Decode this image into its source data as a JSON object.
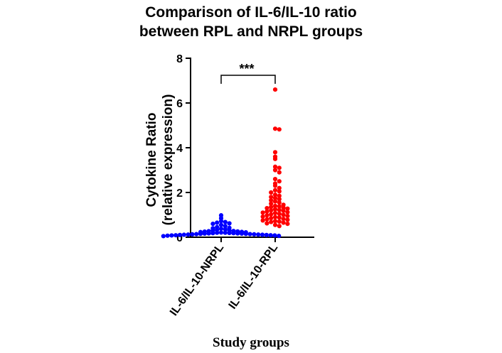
{
  "chart_data": {
    "type": "scatter",
    "title_lines": [
      "Comparison of IL-6/IL-10 ratio",
      "between RPL and NRPL groups"
    ],
    "ylabel_lines": [
      "Cytokine Ratio",
      "(relative expression)"
    ],
    "xlabel": "Study groups",
    "ylim": [
      0,
      8
    ],
    "yticks": [
      "0",
      "2",
      "4",
      "6",
      "8"
    ],
    "categories": [
      "IL-6/IL-10-NRPL",
      "IL-6/IL-10-RPL"
    ],
    "significance": "***",
    "grid": false,
    "series": [
      {
        "color": "#0000ff",
        "values": [
          0.98,
          0.85,
          0.72,
          0.68,
          0.65,
          0.62,
          0.6,
          0.55,
          0.5,
          0.45,
          0.42,
          0.4,
          0.38,
          0.35,
          0.33,
          0.3,
          0.3,
          0.28,
          0.27,
          0.26,
          0.25,
          0.24,
          0.23,
          0.22,
          0.21,
          0.2,
          0.2,
          0.19,
          0.18,
          0.18,
          0.17,
          0.17,
          0.16,
          0.16,
          0.15,
          0.15,
          0.14,
          0.14,
          0.13,
          0.13,
          0.12,
          0.12,
          0.11,
          0.11,
          0.1,
          0.1,
          0.09,
          0.09,
          0.08,
          0.08,
          0.07,
          0.06,
          0.05
        ]
      },
      {
        "color": "#ff0000",
        "values": [
          6.6,
          4.85,
          4.82,
          3.8,
          3.6,
          3.5,
          3.15,
          3.1,
          3.0,
          2.9,
          2.6,
          2.5,
          2.4,
          2.3,
          2.2,
          2.1,
          2.05,
          2.0,
          1.9,
          1.85,
          1.8,
          1.75,
          1.7,
          1.65,
          1.6,
          1.55,
          1.5,
          1.45,
          1.4,
          1.38,
          1.35,
          1.32,
          1.3,
          1.28,
          1.25,
          1.22,
          1.2,
          1.18,
          1.15,
          1.12,
          1.1,
          1.08,
          1.05,
          1.02,
          1.0,
          0.98,
          0.95,
          0.92,
          0.9,
          0.88,
          0.85,
          0.82,
          0.8,
          0.78,
          0.75,
          0.72,
          0.7,
          0.68,
          0.65,
          0.62,
          0.6,
          0.55,
          0.5
        ]
      }
    ]
  }
}
